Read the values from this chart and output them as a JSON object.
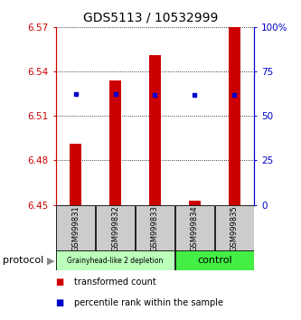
{
  "title": "GDS5113 / 10532999",
  "samples": [
    "GSM999831",
    "GSM999832",
    "GSM999833",
    "GSM999834",
    "GSM999835"
  ],
  "bar_bottoms": [
    6.45,
    6.45,
    6.45,
    6.45,
    6.45
  ],
  "bar_tops": [
    6.491,
    6.534,
    6.551,
    6.453,
    6.57
  ],
  "percentile_values": [
    6.525,
    6.525,
    6.524,
    6.524,
    6.524
  ],
  "ylim": [
    6.45,
    6.57
  ],
  "yticks": [
    6.45,
    6.48,
    6.51,
    6.54,
    6.57
  ],
  "ytick_labels": [
    "6.45",
    "6.48",
    "6.51",
    "6.54",
    "6.57"
  ],
  "right_yticks": [
    0,
    25,
    50,
    75,
    100
  ],
  "right_ytick_labels": [
    "0",
    "25",
    "50",
    "75",
    "100%"
  ],
  "bar_color": "#cc0000",
  "percentile_color": "#0000cc",
  "group1_indices": [
    0,
    1,
    2
  ],
  "group2_indices": [
    3,
    4
  ],
  "group1_label": "Grainyhead-like 2 depletion",
  "group2_label": "control",
  "group1_color": "#bbffbb",
  "group2_color": "#44ee44",
  "group_header": "protocol",
  "legend_bar_label": "transformed count",
  "legend_pct_label": "percentile rank within the sample",
  "axes_color": "#cc0000",
  "right_axes_color": "#0000cc"
}
